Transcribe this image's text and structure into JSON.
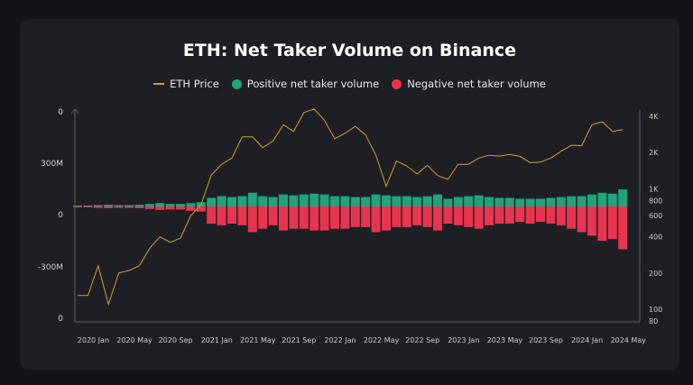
{
  "chart_data": {
    "type": "bar+line",
    "title": "ETH: Net Taker Volume on Binance",
    "legend": [
      "ETH Price",
      "Positive net taker volume",
      "Negative net taker volume"
    ],
    "legend_placement": "top",
    "colors": {
      "price": "#c9a227",
      "positive": "#1fa57a",
      "negative": "#e8344f"
    },
    "left_axis": {
      "tick_labels": [
        "0",
        "300M",
        "0",
        "-300M",
        "0"
      ],
      "ylim": [
        -600,
        600
      ],
      "unit": "M"
    },
    "right_axis": {
      "scale": "log",
      "tick_labels": [
        "4K",
        "2K",
        "1K",
        "800",
        "600",
        "400",
        "200",
        "100",
        "80"
      ],
      "tick_values": [
        4000,
        2000,
        1000,
        800,
        600,
        400,
        200,
        100,
        80
      ],
      "ylim": [
        80,
        4000
      ]
    },
    "x_tick_labels": [
      "2020 Jan",
      "2020 May",
      "2020 Sep",
      "2021 Jan",
      "2021 May",
      "2021 Sep",
      "2022 Jan",
      "2022 May",
      "2022 Sep",
      "2023 Jan",
      "2023 May",
      "2023 Sep",
      "2024 Jan",
      "2024 May"
    ],
    "x": [
      "2019-12",
      "2020-01",
      "2020-02",
      "2020-03",
      "2020-04",
      "2020-05",
      "2020-06",
      "2020-07",
      "2020-08",
      "2020-09",
      "2020-10",
      "2020-11",
      "2020-12",
      "2021-01",
      "2021-02",
      "2021-03",
      "2021-04",
      "2021-05",
      "2021-06",
      "2021-07",
      "2021-08",
      "2021-09",
      "2021-10",
      "2021-11",
      "2021-12",
      "2022-01",
      "2022-02",
      "2022-03",
      "2022-04",
      "2022-05",
      "2022-06",
      "2022-07",
      "2022-08",
      "2022-09",
      "2022-10",
      "2022-11",
      "2022-12",
      "2023-01",
      "2023-02",
      "2023-03",
      "2023-04",
      "2023-05",
      "2023-06",
      "2023-07",
      "2023-08",
      "2023-09",
      "2023-10",
      "2023-11",
      "2023-12",
      "2024-01",
      "2024-02",
      "2024-03",
      "2024-04",
      "2024-05"
    ],
    "series": [
      {
        "name": "ETH Price",
        "axis": "right",
        "values": [
          130,
          130,
          230,
          110,
          200,
          210,
          230,
          320,
          400,
          360,
          390,
          600,
          740,
          1300,
          1600,
          1800,
          2700,
          2700,
          2200,
          2500,
          3400,
          3000,
          4300,
          4600,
          3700,
          2600,
          2900,
          3300,
          2800,
          1900,
          1050,
          1700,
          1550,
          1330,
          1570,
          1290,
          1200,
          1600,
          1600,
          1800,
          1900,
          1870,
          1930,
          1860,
          1650,
          1670,
          1800,
          2050,
          2300,
          2280,
          3400,
          3600,
          3000,
          3100
        ]
      },
      {
        "name": "Positive net taker volume",
        "axis": "left",
        "values": [
          5,
          5,
          8,
          10,
          8,
          8,
          10,
          15,
          20,
          15,
          15,
          20,
          25,
          50,
          60,
          55,
          60,
          80,
          60,
          55,
          70,
          65,
          70,
          75,
          70,
          60,
          60,
          55,
          55,
          70,
          65,
          60,
          60,
          55,
          60,
          70,
          45,
          55,
          60,
          65,
          55,
          50,
          50,
          45,
          45,
          45,
          50,
          55,
          60,
          60,
          70,
          80,
          75,
          100
        ]
      },
      {
        "name": "Negative net taker volume",
        "axis": "left",
        "values": [
          -5,
          -5,
          -8,
          -10,
          -8,
          -8,
          -10,
          -15,
          -20,
          -18,
          -18,
          -25,
          -30,
          -100,
          -110,
          -100,
          -110,
          -150,
          -130,
          -110,
          -140,
          -130,
          -130,
          -140,
          -140,
          -130,
          -130,
          -120,
          -120,
          -150,
          -140,
          -120,
          -120,
          -110,
          -120,
          -140,
          -100,
          -110,
          -120,
          -130,
          -110,
          -100,
          -100,
          -90,
          -100,
          -90,
          -100,
          -110,
          -130,
          -150,
          -170,
          -200,
          -190,
          -250
        ]
      }
    ]
  }
}
